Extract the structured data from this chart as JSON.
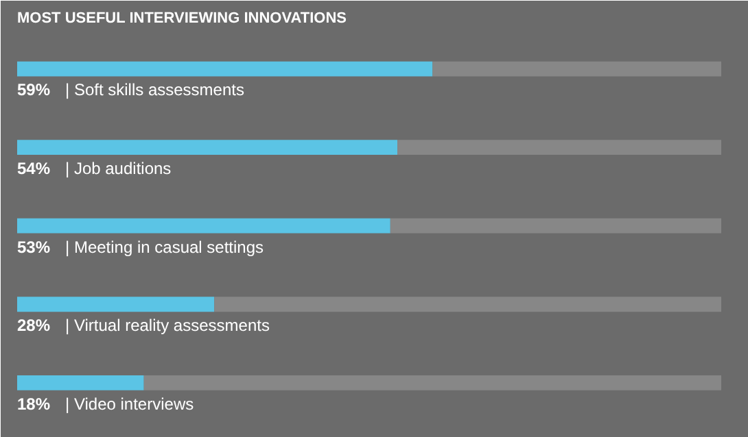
{
  "chart_data": {
    "type": "bar",
    "orientation": "horizontal",
    "stacked": true,
    "title": "MOST USEFUL INTERVIEWING INNOVATIONS",
    "categories": [
      "|  Soft skills assessments",
      "|  Job auditions",
      "|  Meeting in casual settings",
      "|  Virtual reality assessments",
      "|  Video interviews"
    ],
    "series": [
      {
        "color": "#5bc4e5",
        "values": [
          59,
          54,
          53,
          28,
          18
        ],
        "value_labels": [
          "59%",
          "54%",
          "53%",
          "28%",
          "18%"
        ]
      },
      {
        "color": "#878787",
        "values": [
          41,
          46,
          47,
          72,
          82
        ]
      }
    ],
    "grid": false
  }
}
